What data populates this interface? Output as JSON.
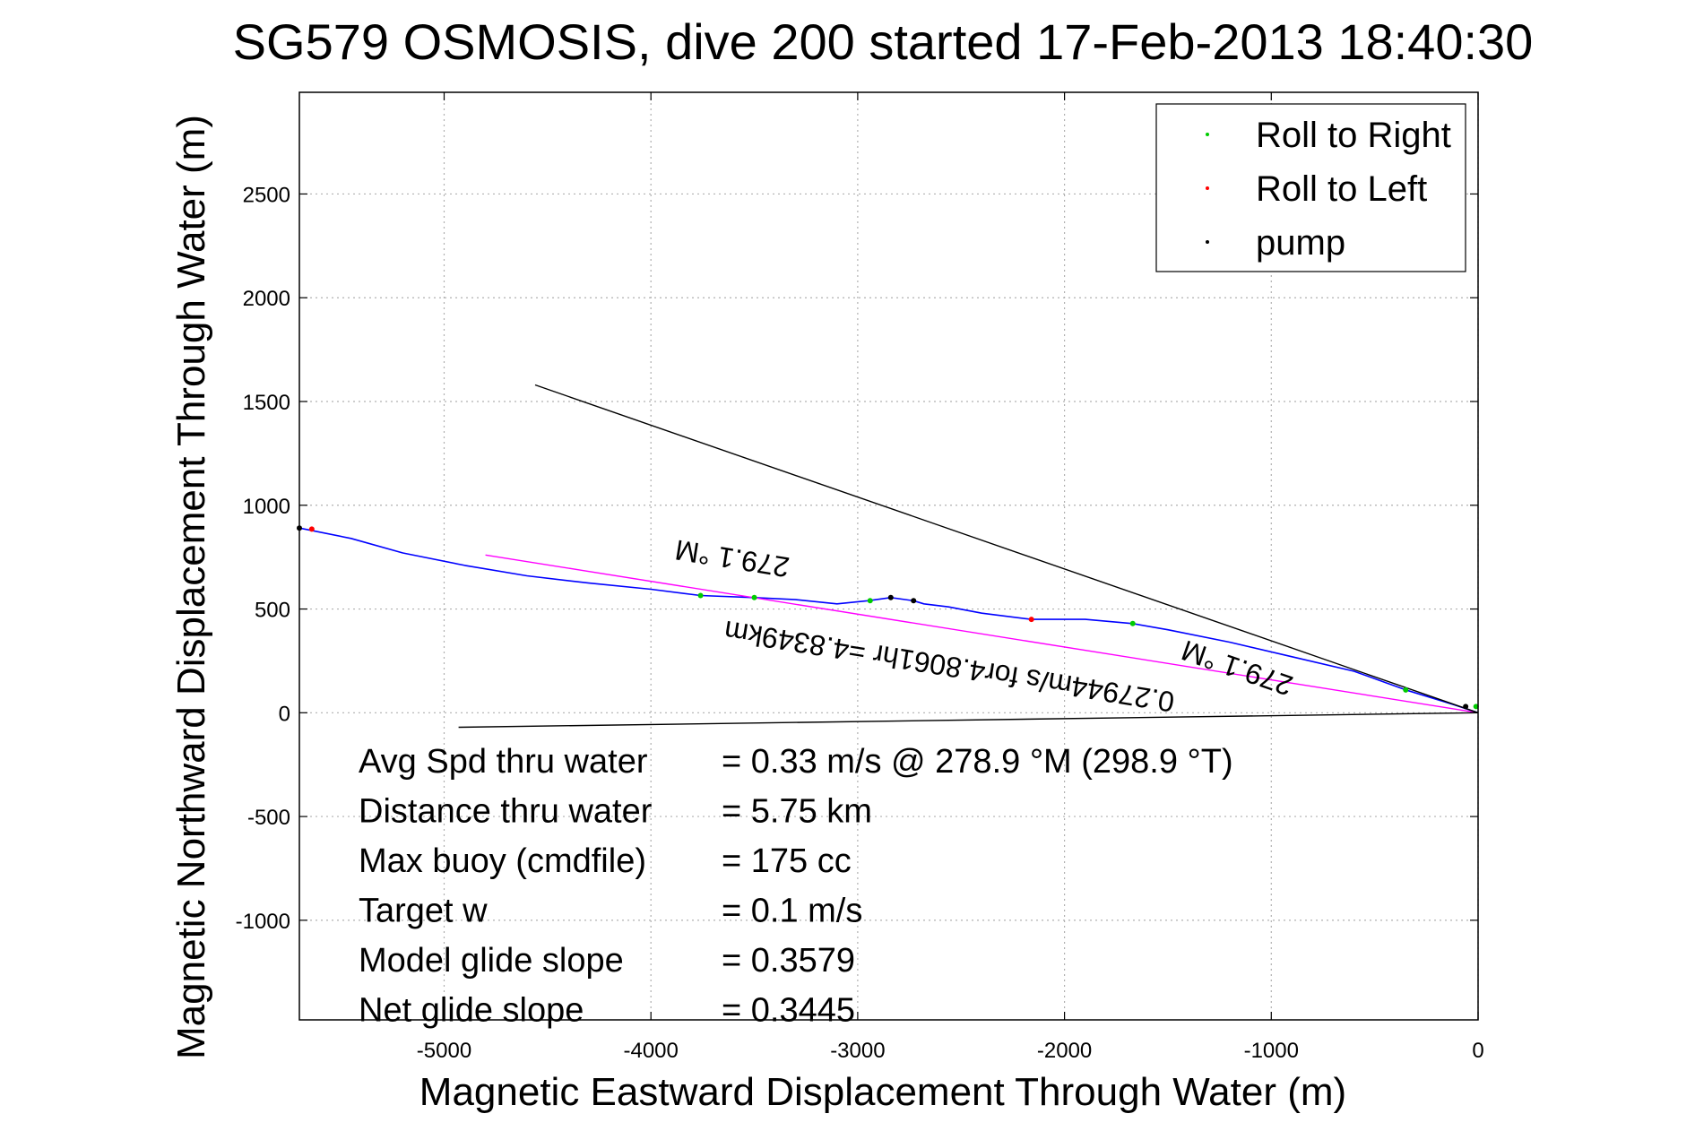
{
  "chart_data": {
    "type": "line",
    "title": "SG579 OSMOSIS, dive 200 started 17-Feb-2013 18:40:30",
    "xlabel": "Magnetic Eastward Displacement Through Water (m)",
    "ylabel": "Magnetic Northward Displacement Through Water (m)",
    "xlim": [
      -5700,
      0
    ],
    "ylim": [
      -1480,
      2990
    ],
    "xticks": [
      -5000,
      -4000,
      -3000,
      -2000,
      -1000,
      0
    ],
    "yticks": [
      -1000,
      -500,
      0,
      500,
      1000,
      1500,
      2000,
      2500
    ],
    "xtick_labels": [
      "-5000",
      "-4000",
      "-3000",
      "-2000",
      "-1000",
      "0"
    ],
    "ytick_labels": [
      "-1000",
      "-500",
      "0",
      "500",
      "1000",
      "1500",
      "2000",
      "2500"
    ],
    "grid": true,
    "legend_position": "top-right",
    "legend": [
      {
        "label": "Roll to Right",
        "color": "#00cc00"
      },
      {
        "label": "Roll to Left",
        "color": "#ff0000"
      },
      {
        "label": "pump",
        "color": "#000000"
      }
    ],
    "series": [
      {
        "color": "#0000ff",
        "style": "track",
        "x": [
          0,
          -120,
          -350,
          -600,
          -900,
          -1200,
          -1500,
          -1670,
          -1900,
          -2160,
          -2400,
          -2560,
          -2680,
          -2730,
          -2840,
          -2950,
          -3100,
          -3300,
          -3500,
          -3760,
          -4000,
          -4300,
          -4600,
          -4900,
          -5200,
          -5450,
          -5700
        ],
        "y": [
          0,
          40,
          110,
          200,
          270,
          340,
          400,
          430,
          450,
          450,
          480,
          510,
          525,
          540,
          555,
          540,
          525,
          545,
          555,
          565,
          595,
          625,
          660,
          710,
          770,
          840,
          890
        ]
      },
      {
        "color": "#ff00ff",
        "style": "line",
        "x": [
          0,
          -4800
        ],
        "y": [
          0,
          760
        ]
      },
      {
        "color": "#000000",
        "style": "line",
        "x": [
          0,
          -4560
        ],
        "y": [
          0,
          1580
        ]
      },
      {
        "color": "#000000",
        "style": "line",
        "x": [
          0,
          -4930
        ],
        "y": [
          0,
          -70
        ]
      }
    ],
    "markers": {
      "Roll to Right": {
        "color": "#00cc00",
        "x": [
          -10,
          -350,
          -1670,
          -2940,
          -3500,
          -3760
        ],
        "y": [
          30,
          110,
          430,
          540,
          555,
          565
        ]
      },
      "Roll to Left": {
        "color": "#ff0000",
        "x": [
          -2160,
          -5640
        ],
        "y": [
          450,
          885
        ]
      },
      "pump": {
        "color": "#000000",
        "x": [
          -60,
          -2840,
          -2730,
          -5700
        ],
        "y": [
          30,
          555,
          540,
          890
        ]
      }
    },
    "annotations": [
      {
        "text": "279.1 °M",
        "x": -3600,
        "y": 790,
        "rotation": 189.1
      },
      {
        "text": "279.1 °M",
        "x": -1150,
        "y": 260,
        "rotation": 199.1
      },
      {
        "text": "0.27944m/s for4.8061hr =4.8349km",
        "x": -2550,
        "y": 270,
        "rotation": 189.1
      }
    ],
    "stats": [
      {
        "label": "Avg Spd thru water",
        "value": "=  0.33 m/s @ 278.9 °M (298.9 °T)"
      },
      {
        "label": "Distance thru water",
        "value": "=  5.75 km"
      },
      {
        "label": "Max buoy (cmdfile)",
        "value": "= 175 cc"
      },
      {
        "label": "Target w",
        "value": "= 0.1 m/s"
      },
      {
        "label": "Model glide slope",
        "value": "= 0.3579"
      },
      {
        "label": "Net glide slope",
        "value": "= 0.3445"
      }
    ]
  }
}
